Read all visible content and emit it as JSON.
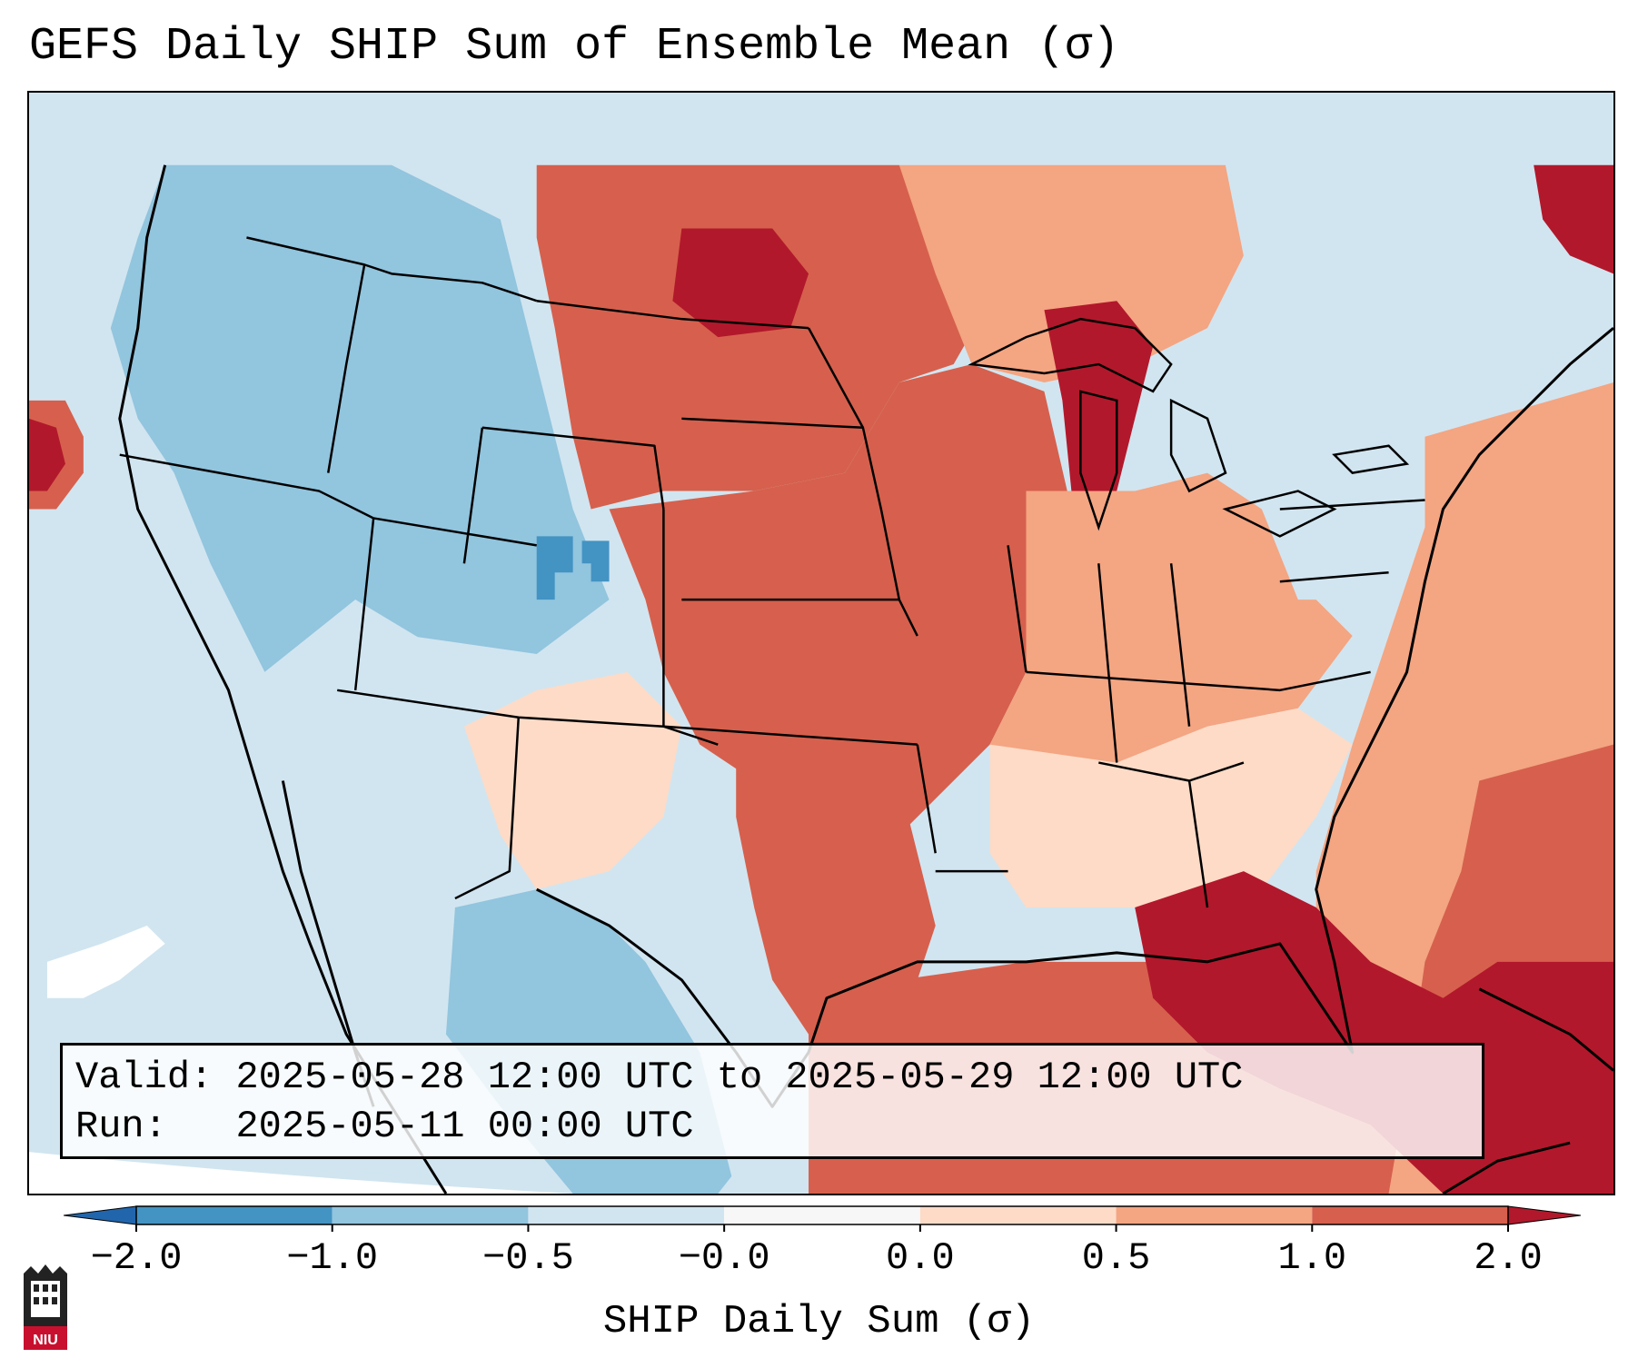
{
  "title": "GEFS Daily SHIP Sum of Ensemble Mean (σ)",
  "info": {
    "valid_label": "Valid:",
    "valid_value": "2025-05-28 12:00 UTC to 2025-05-29 12:00 UTC",
    "run_label": "Run:",
    "run_value": "2025-05-11 00:00 UTC"
  },
  "colorbar": {
    "label": "SHIP Daily Sum (σ)",
    "bins": [
      {
        "from": -2.0,
        "to": -1.0,
        "color": "#4393c3"
      },
      {
        "from": -1.0,
        "to": -0.5,
        "color": "#92c5de"
      },
      {
        "from": -0.5,
        "to": -0.0,
        "color": "#d1e5f0"
      },
      {
        "from": -0.0,
        "to": 0.0,
        "color": "#f7f7f7"
      },
      {
        "from": 0.0,
        "to": 0.5,
        "color": "#fddbc7"
      },
      {
        "from": 0.5,
        "to": 1.0,
        "color": "#f4a582"
      },
      {
        "from": 1.0,
        "to": 2.0,
        "color": "#d6604d"
      }
    ],
    "under_color": "#2166ac",
    "over_color": "#b2182b",
    "ticks": [
      "−2.0",
      "−1.0",
      "−0.5",
      "−0.0",
      "0.0",
      "0.5",
      "1.0",
      "2.0"
    ]
  },
  "logo": {
    "text": "NIU",
    "color": "#c8102e"
  },
  "map": {
    "projection": "Lambert conformal",
    "region": "Contiguous United States",
    "field": "SHIP Daily Sum anomaly (σ)",
    "features": [
      "state borders",
      "country borders",
      "coastlines",
      "Great Lakes"
    ]
  }
}
